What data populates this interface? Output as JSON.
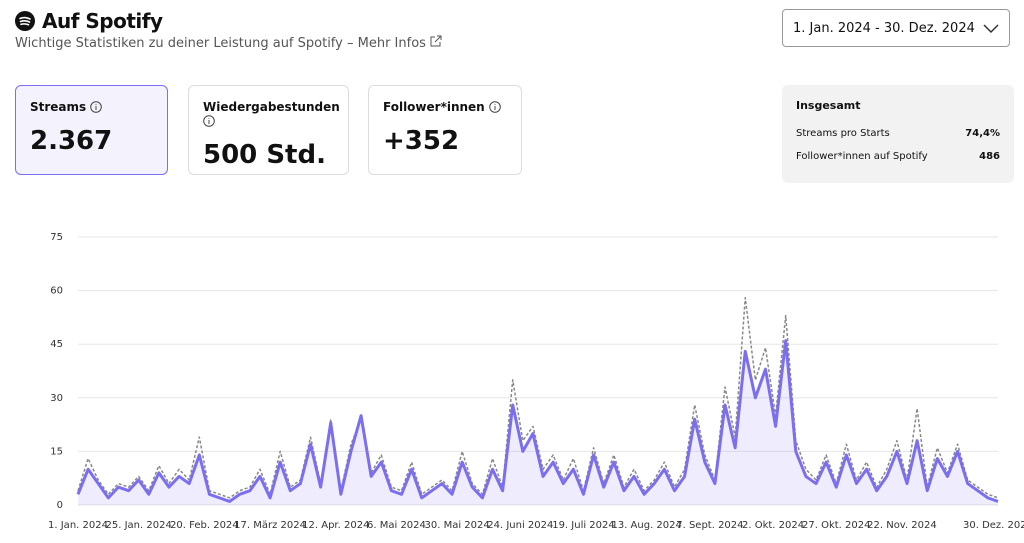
{
  "header": {
    "title": "Auf Spotify",
    "subtitle": "Wichtige Statistiken zu deiner Leistung auf Spotify – Mehr Infos",
    "date_range": "1. Jan. 2024 - 30. Dez. 2024"
  },
  "cards": [
    {
      "label": "Streams",
      "value": "2.367"
    },
    {
      "label": "Wiedergabestunden",
      "value": "500 Std."
    },
    {
      "label": "Follower*innen",
      "value": "+352"
    }
  ],
  "summary": {
    "title": "Insgesamt",
    "rows": [
      [
        "Streams pro Starts",
        "74,4%"
      ],
      [
        "Follower*innen auf Spotify",
        "486"
      ]
    ]
  },
  "chart_data": {
    "type": "line",
    "grid": true,
    "x": [
      0,
      4,
      8,
      12,
      16,
      20,
      24,
      28,
      32,
      36,
      40,
      44,
      48,
      52,
      56,
      60,
      64,
      68,
      72,
      76,
      80,
      84,
      88,
      92,
      96,
      100,
      104,
      108,
      112,
      116,
      120,
      124,
      128,
      132,
      136,
      140,
      144,
      148,
      152,
      156,
      160,
      164,
      168,
      172,
      176,
      180,
      184,
      188,
      192,
      196,
      200,
      204,
      208,
      212,
      216,
      220,
      224,
      228,
      232,
      236,
      240,
      244,
      248,
      252,
      256,
      260,
      264,
      268,
      272,
      276,
      280,
      284,
      288,
      292,
      296,
      300,
      304,
      308,
      312,
      316,
      320,
      324,
      328,
      332,
      336,
      340,
      344,
      348,
      352,
      356,
      360,
      364
    ],
    "series": [
      {
        "color": "#7b6ff0",
        "style": "solid",
        "values": [
          3,
          10,
          6,
          2,
          5,
          4,
          7,
          3,
          9,
          5,
          8,
          6,
          14,
          3,
          2,
          1,
          3,
          4,
          8,
          2,
          12,
          4,
          6,
          17,
          5,
          23,
          3,
          15,
          25,
          8,
          12,
          4,
          3,
          10,
          2,
          4,
          6,
          3,
          12,
          5,
          2,
          10,
          4,
          28,
          15,
          20,
          8,
          12,
          6,
          10,
          3,
          14,
          5,
          12,
          4,
          8,
          3,
          6,
          10,
          4,
          8,
          24,
          12,
          6,
          28,
          16,
          43,
          30,
          38,
          22,
          46,
          15,
          8,
          6,
          12,
          5,
          14,
          6,
          10,
          4,
          8,
          15,
          6,
          18,
          4,
          13,
          8,
          15,
          6,
          4,
          2,
          1
        ]
      },
      {
        "color": "#888888",
        "style": "dashed",
        "values": [
          4,
          13,
          7,
          3,
          6,
          5,
          8,
          4,
          11,
          6,
          10,
          7,
          19,
          4,
          3,
          2,
          4,
          5,
          10,
          3,
          15,
          5,
          7,
          19,
          6,
          24,
          4,
          17,
          24,
          9,
          14,
          5,
          4,
          12,
          3,
          5,
          7,
          4,
          15,
          6,
          3,
          13,
          5,
          35,
          18,
          22,
          10,
          14,
          7,
          13,
          4,
          16,
          6,
          14,
          5,
          10,
          4,
          7,
          12,
          5,
          10,
          28,
          14,
          7,
          33,
          19,
          58,
          35,
          44,
          25,
          53,
          18,
          10,
          7,
          14,
          6,
          17,
          7,
          12,
          5,
          10,
          18,
          7,
          27,
          5,
          16,
          9,
          17,
          7,
          5,
          3,
          2
        ]
      }
    ],
    "xlim": [
      0,
      364
    ],
    "xticks": [
      {
        "value": 0,
        "label": "1. Jan. 2024"
      },
      {
        "value": 24,
        "label": "25. Jan. 2024"
      },
      {
        "value": 50,
        "label": "20. Feb. 2024"
      },
      {
        "value": 76,
        "label": "17. März 2024"
      },
      {
        "value": 102,
        "label": "12. Apr. 2024"
      },
      {
        "value": 126,
        "label": "6. Mai 2024"
      },
      {
        "value": 150,
        "label": "30. Mai 2024"
      },
      {
        "value": 175,
        "label": "24. Juni 2024"
      },
      {
        "value": 200,
        "label": "19. Juli 2024"
      },
      {
        "value": 225,
        "label": "13. Aug. 2024"
      },
      {
        "value": 250,
        "label": "7. Sept. 2024"
      },
      {
        "value": 275,
        "label": "2. Okt. 2024"
      },
      {
        "value": 300,
        "label": "27. Okt. 2024"
      },
      {
        "value": 326,
        "label": "22. Nov. 2024"
      },
      {
        "value": 364,
        "label": "30. Dez. 2024"
      }
    ],
    "ylim": [
      0,
      75
    ],
    "yticks": [
      0,
      15,
      30,
      45,
      60,
      75
    ]
  }
}
